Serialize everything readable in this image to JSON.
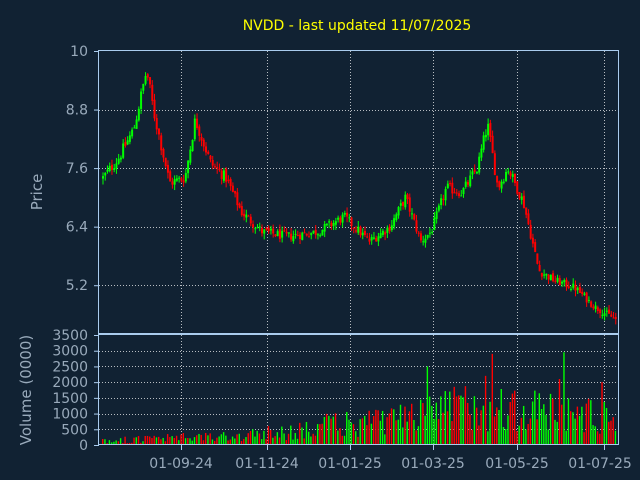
{
  "chart_data": [
    {
      "type": "candlestick",
      "title": "NVDD - last updated 11/07/2025",
      "ylabel": "Price",
      "ylim": [
        4.2,
        10
      ],
      "yticks": [
        "10",
        "8.8",
        "7.6",
        "6.4",
        "5.2"
      ],
      "xlabel": "",
      "xticks": [
        "01-09-24",
        "01-11-24",
        "01-01-25",
        "01-03-25",
        "01-05-25",
        "01-07-25"
      ],
      "grid": true,
      "colors": {
        "up": "#00ff00",
        "down": "#ff0000",
        "background": "#112233",
        "grid": "#ffffff",
        "title": "#ffff00",
        "text": "#99aabb"
      },
      "price_anchors": [
        {
          "t": 0.0,
          "close": 7.4
        },
        {
          "t": 0.03,
          "close": 7.8
        },
        {
          "t": 0.06,
          "close": 8.4
        },
        {
          "t": 0.085,
          "close": 9.6
        },
        {
          "t": 0.1,
          "close": 8.7
        },
        {
          "t": 0.13,
          "close": 7.3
        },
        {
          "t": 0.16,
          "close": 7.4
        },
        {
          "t": 0.18,
          "close": 8.6
        },
        {
          "t": 0.21,
          "close": 7.7
        },
        {
          "t": 0.24,
          "close": 7.4
        },
        {
          "t": 0.27,
          "close": 6.7
        },
        {
          "t": 0.31,
          "close": 6.3
        },
        {
          "t": 0.36,
          "close": 6.2
        },
        {
          "t": 0.42,
          "close": 6.3
        },
        {
          "t": 0.47,
          "close": 6.6
        },
        {
          "t": 0.52,
          "close": 6.1
        },
        {
          "t": 0.56,
          "close": 6.4
        },
        {
          "t": 0.59,
          "close": 7.0
        },
        {
          "t": 0.62,
          "close": 6.1
        },
        {
          "t": 0.64,
          "close": 6.3
        },
        {
          "t": 0.67,
          "close": 7.2
        },
        {
          "t": 0.7,
          "close": 7.1
        },
        {
          "t": 0.73,
          "close": 7.6
        },
        {
          "t": 0.75,
          "close": 8.5
        },
        {
          "t": 0.77,
          "close": 7.2
        },
        {
          "t": 0.79,
          "close": 7.6
        },
        {
          "t": 0.82,
          "close": 6.9
        },
        {
          "t": 0.85,
          "close": 5.5
        },
        {
          "t": 0.88,
          "close": 5.3
        },
        {
          "t": 0.92,
          "close": 5.15
        },
        {
          "t": 0.96,
          "close": 4.75
        },
        {
          "t": 1.0,
          "close": 4.5
        }
      ]
    },
    {
      "type": "bar",
      "ylabel": "Volume (0000)",
      "ylim": [
        0,
        3500
      ],
      "yticks": [
        "3500",
        "3000",
        "2500",
        "2000",
        "1500",
        "1000",
        "500",
        "0"
      ],
      "grid": true,
      "volume_anchors": [
        {
          "t": 0.0,
          "volume": 150
        },
        {
          "t": 0.15,
          "volume": 250
        },
        {
          "t": 0.3,
          "volume": 350
        },
        {
          "t": 0.45,
          "volume": 700
        },
        {
          "t": 0.6,
          "volume": 900
        },
        {
          "t": 0.65,
          "volume": 1300
        },
        {
          "t": 0.75,
          "volume": 1400
        },
        {
          "t": 0.85,
          "volume": 1200
        },
        {
          "t": 1.0,
          "volume": 1000
        }
      ],
      "volume_peaks": [
        {
          "t": 0.635,
          "volume": 2500
        },
        {
          "t": 0.745,
          "volume": 2200
        },
        {
          "t": 0.76,
          "volume": 2900
        },
        {
          "t": 0.89,
          "volume": 2100
        },
        {
          "t": 0.9,
          "volume": 2950
        },
        {
          "t": 0.975,
          "volume": 2000
        }
      ]
    }
  ]
}
